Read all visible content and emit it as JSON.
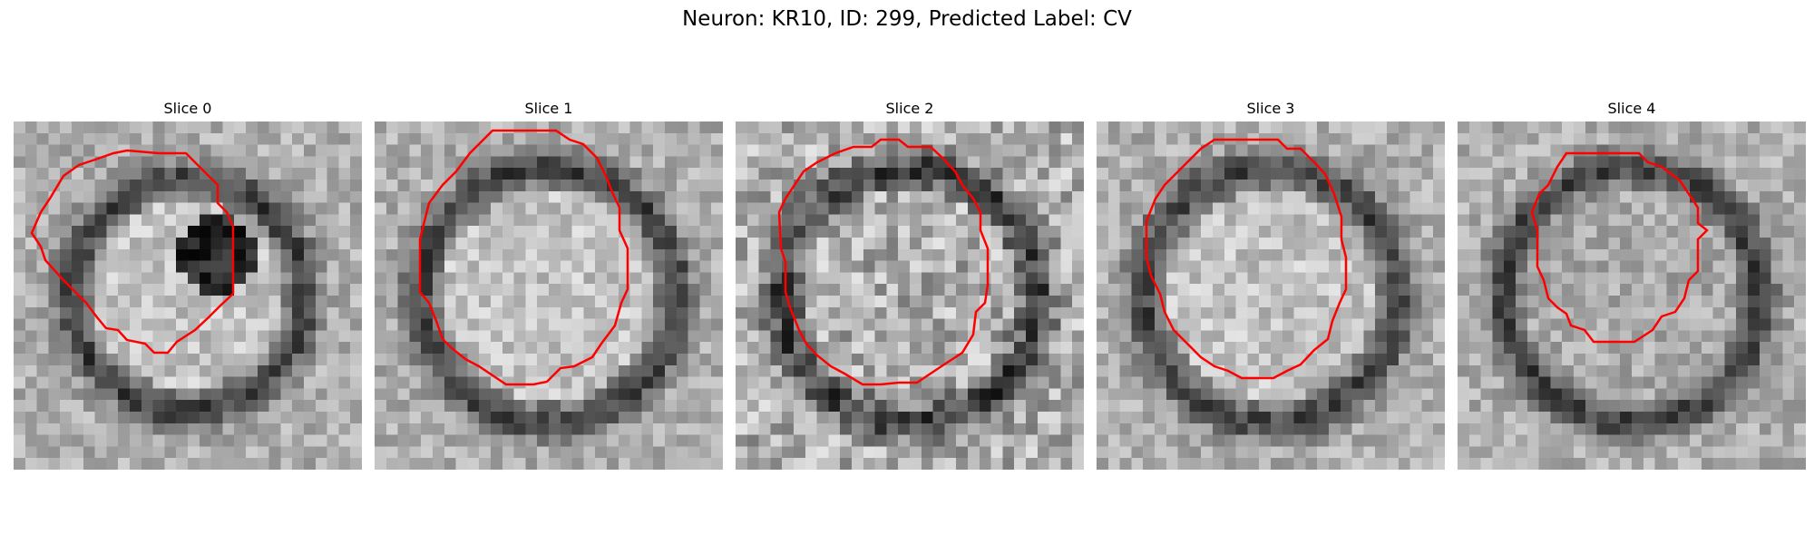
{
  "figure": {
    "title": "Neuron: KR10, ID: 299, Predicted Label: CV"
  },
  "contour_color": "#ff0000",
  "colormap": "grayscale",
  "slices": [
    {
      "label": "Slice 0",
      "image_content": "grayscale patch with bright crescent-shaped region and dark interior blob, red contour outline"
    },
    {
      "label": "Slice 1",
      "image_content": "grayscale patch with bright round interior surrounded by dark ring, red contour outline"
    },
    {
      "label": "Slice 2",
      "image_content": "grayscale patch with speckled round interior surrounded by dark ring, red contour outline"
    },
    {
      "label": "Slice 3",
      "image_content": "grayscale patch with bright round interior surrounded by dark ring, red contour outline"
    },
    {
      "label": "Slice 4",
      "image_content": "grayscale patch with mid-gray round interior surrounded by dark ring, red contour outline"
    }
  ]
}
